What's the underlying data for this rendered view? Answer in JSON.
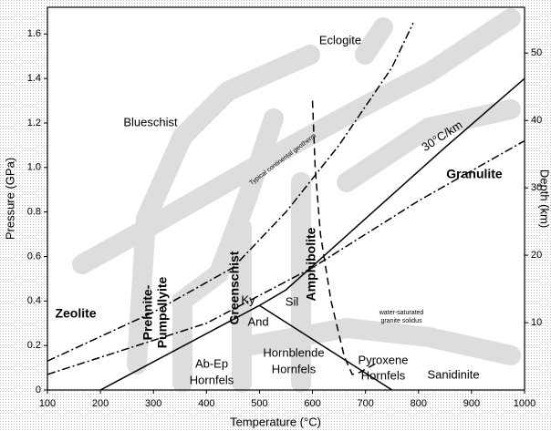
{
  "chart_data": {
    "type": "line",
    "xlabel": "Temperature (°C)",
    "ylabel": "Pressure (GPa)",
    "y2label": "Depth (km)",
    "xlim": [
      100,
      1000
    ],
    "xticks": [
      100,
      200,
      300,
      400,
      500,
      600,
      700,
      800,
      900,
      1000
    ],
    "ylim": [
      0,
      1.72
    ],
    "yticks": [
      0,
      0.2,
      0.4,
      0.6,
      0.8,
      {
        "value": 1,
        "label": "1.0"
      },
      1.2,
      1.4,
      1.6
    ],
    "y2lim": [
      0,
      56.8
    ],
    "y2ticks": [
      10,
      20,
      30,
      40,
      50
    ],
    "series": [
      {
        "color": "#000",
        "style": "solid",
        "x": [
          200,
          500,
          550,
          700,
          850,
          1000
        ],
        "values": [
          0,
          0.38,
          0.45,
          0.77,
          1.09,
          1.4
        ]
      },
      {
        "color": "#000",
        "style": "solid",
        "x": [
          500,
          750
        ],
        "values": [
          0.38,
          0
        ]
      },
      {
        "color": "#000",
        "style": "dashdot",
        "x": [
          100,
          300,
          450,
          550,
          650,
          750,
          790
        ],
        "values": [
          0.13,
          0.35,
          0.55,
          0.8,
          1.1,
          1.45,
          1.65
        ]
      },
      {
        "color": "#000",
        "style": "dashdot",
        "x": [
          100,
          400,
          600,
          800,
          1000
        ],
        "values": [
          0.07,
          0.3,
          0.55,
          0.85,
          1.12
        ]
      },
      {
        "color": "#000",
        "style": "dashed",
        "x": [
          600,
          605,
          615,
          635,
          660,
          675,
          690,
          720
        ],
        "values": [
          1.3,
          1.0,
          0.7,
          0.4,
          0.15,
          0.07,
          0.08,
          0.12
        ]
      }
    ],
    "annotations": [
      "Eclogite",
      "Blueschist",
      "Granulite",
      "Zeolite",
      "Prehnite-",
      "Pumpellyite",
      "Greenschist",
      "Amphibolite",
      "Ky",
      "Sil",
      "And",
      "Ab-Ep",
      "Hornfels",
      "Hornblende",
      "Hornfels",
      "Pyroxene",
      "Hornfels",
      "Sanidinite",
      "Typical continental geotherm",
      "30°C/km",
      "water-saturated",
      "granite solidus"
    ]
  }
}
